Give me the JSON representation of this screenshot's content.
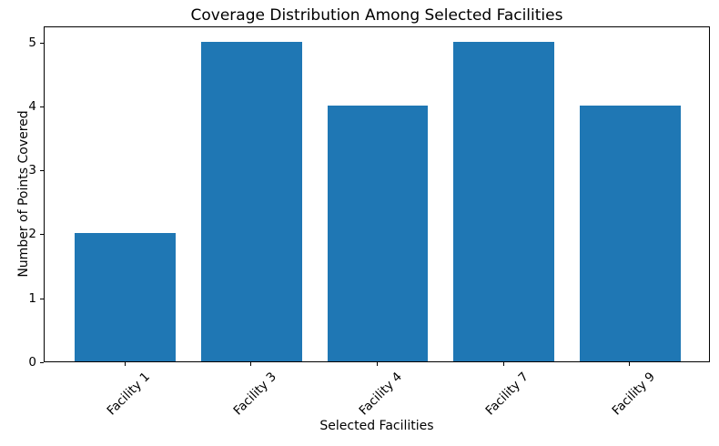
{
  "chart_data": {
    "type": "bar",
    "title": "Coverage Distribution Among Selected Facilities",
    "xlabel": "Selected Facilities",
    "ylabel": "Number of Points Covered",
    "categories": [
      "Facility 1",
      "Facility 3",
      "Facility 4",
      "Facility 7",
      "Facility 9"
    ],
    "values": [
      2,
      5,
      4,
      5,
      4
    ],
    "ylim": [
      0,
      5.25
    ],
    "yticks": [
      0,
      1,
      2,
      3,
      4,
      5
    ],
    "x_tick_rotation_deg": 45,
    "bar_width_fraction": 0.8,
    "grid": false,
    "legend": "none",
    "colors": {
      "bar": "#1f77b4",
      "spine": "#000000",
      "text": "#000000",
      "background": "#ffffff"
    }
  }
}
